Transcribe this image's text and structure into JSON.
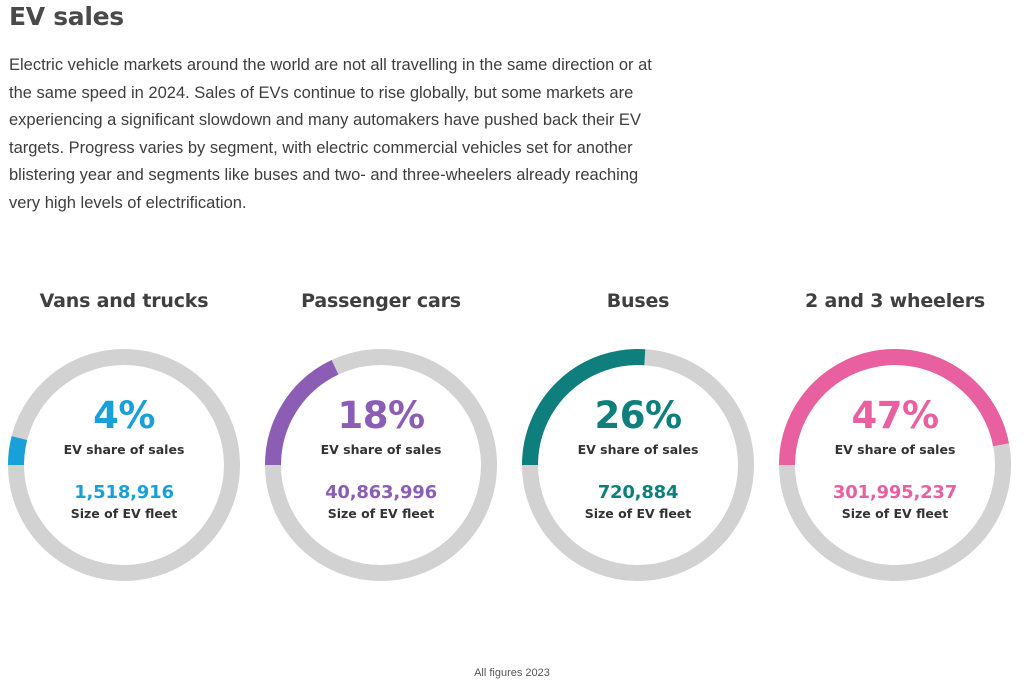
{
  "title": "EV sales",
  "intro": "Electric vehicle markets around the world are not all travelling in the same direction or at the same speed in 2024. Sales of EVs continue to rise globally, but some markets are experiencing a significant slowdown and many automakers have pushed back their EV targets. Progress varies by segment, with electric commercial vehicles set for another blistering year and segments like buses and two- and three-wheelers already reaching very high levels of electrification.",
  "colors": {
    "track": "#d2d2d2",
    "vans": "#1aa0d8",
    "cars": "#8b5db5",
    "buses": "#0e7f7d",
    "wheelers": "#e8609f"
  },
  "segments": [
    {
      "title": "Vans and trucks",
      "share_text": "4%",
      "share": 0.04,
      "share_label": "EV share of sales",
      "fleet": "1,518,916",
      "fleet_label": "Size of EV fleet",
      "color": "#1aa0d8"
    },
    {
      "title": "Passenger cars",
      "share_text": "18%",
      "share": 0.18,
      "share_label": "EV share of sales",
      "fleet": "40,863,996",
      "fleet_label": "Size of EV fleet",
      "color": "#8b5db5"
    },
    {
      "title": "Buses",
      "share_text": "26%",
      "share": 0.26,
      "share_label": "EV share of sales",
      "fleet": "720,884",
      "fleet_label": "Size of EV fleet",
      "color": "#0e7f7d"
    },
    {
      "title": "2 and 3 wheelers",
      "share_text": "47%",
      "share": 0.47,
      "share_label": "EV share of sales",
      "fleet": "301,995,237",
      "fleet_label": "Size of EV fleet",
      "color": "#e8609f"
    }
  ],
  "footnote": "All figures 2023"
}
